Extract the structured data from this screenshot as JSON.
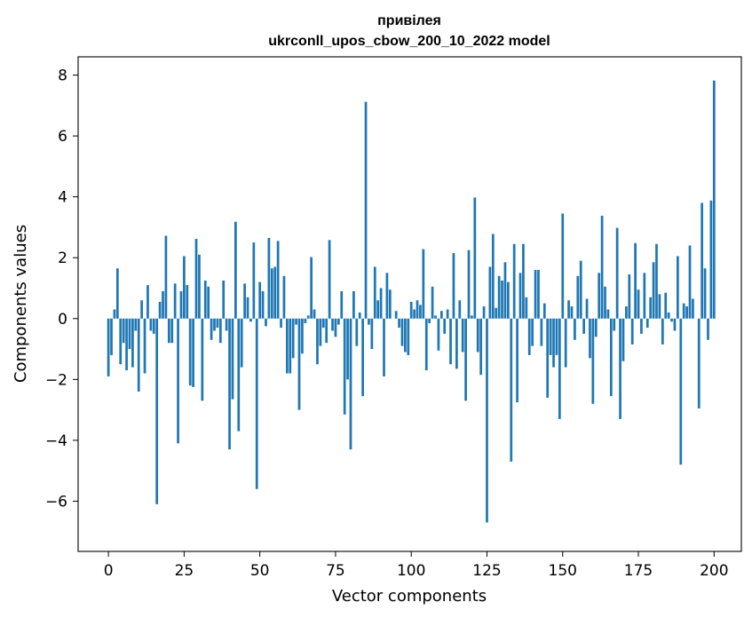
{
  "chart_data": {
    "type": "bar",
    "title": "привілея",
    "subtitle": "ukrconll_upos_cbow_200_10_2022 model",
    "xlabel": "Vector components",
    "ylabel": "Components values",
    "xlim": [
      -10,
      209
    ],
    "ylim": [
      -7.65,
      8.6
    ],
    "xticks": [
      0,
      25,
      50,
      75,
      100,
      125,
      150,
      175,
      200
    ],
    "yticks": [
      -6,
      -4,
      -2,
      0,
      2,
      4,
      6,
      8
    ],
    "ytick_labels": [
      "−6",
      "−4",
      "−2",
      "0",
      "2",
      "4",
      "6",
      "8"
    ],
    "bar_color": "#1f77b4",
    "grid": false,
    "series": [
      {
        "values": [
          -1.9,
          -1.2,
          0.3,
          1.65,
          -1.5,
          -0.8,
          -1.7,
          -1.0,
          -1.6,
          -0.4,
          -2.4,
          0.6,
          -1.8,
          1.1,
          -0.4,
          -0.5,
          -6.1,
          0.55,
          0.9,
          2.72,
          -0.8,
          -0.8,
          1.15,
          -4.1,
          0.9,
          2.05,
          1.1,
          -2.2,
          -2.25,
          2.62,
          2.1,
          -2.7,
          1.25,
          1.05,
          -0.7,
          -0.4,
          -0.3,
          -0.8,
          1.25,
          -0.4,
          -4.3,
          -2.65,
          3.18,
          -3.7,
          -1.6,
          1.15,
          0.7,
          -0.1,
          2.5,
          -5.6,
          1.2,
          0.9,
          -0.25,
          2.65,
          1.65,
          1.7,
          2.55,
          -0.3,
          1.4,
          -1.8,
          -1.8,
          -1.3,
          -0.2,
          -3.0,
          -1.15,
          -0.15,
          0.1,
          2.02,
          0.3,
          -1.5,
          -0.9,
          -0.3,
          -0.8,
          2.58,
          -0.4,
          -0.6,
          -0.2,
          0.9,
          -3.15,
          -2.0,
          -4.3,
          0.9,
          -0.9,
          0.2,
          -2.55,
          7.12,
          -0.2,
          -1.0,
          1.7,
          0.6,
          1.0,
          -1.9,
          1.5,
          0.95,
          0.0,
          0.25,
          -0.3,
          -0.9,
          -1.1,
          -1.2,
          0.55,
          0.3,
          0.6,
          0.45,
          2.28,
          -1.7,
          -0.15,
          1.05,
          0.1,
          -1.05,
          0.25,
          -0.5,
          0.3,
          -1.5,
          2.15,
          -1.65,
          0.6,
          -1.1,
          -2.7,
          2.25,
          0.1,
          3.98,
          -1.1,
          -1.85,
          0.4,
          -6.7,
          1.7,
          2.78,
          0.35,
          1.4,
          1.25,
          1.85,
          1.2,
          -4.7,
          2.45,
          -2.75,
          1.5,
          2.45,
          0.7,
          -1.2,
          -0.9,
          1.6,
          1.6,
          -0.9,
          0.5,
          -2.6,
          -1.2,
          -1.6,
          -1.2,
          -3.3,
          3.45,
          -1.6,
          0.6,
          0.4,
          -0.7,
          1.4,
          1.9,
          -0.5,
          0.65,
          -1.3,
          -2.8,
          -0.6,
          1.5,
          3.38,
          1.05,
          0.3,
          -2.55,
          -0.4,
          2.98,
          -3.3,
          -1.4,
          0.4,
          1.45,
          -0.85,
          2.48,
          0.95,
          -0.5,
          1.5,
          -0.3,
          0.7,
          1.85,
          2.45,
          0.8,
          -0.85,
          0.85,
          0.2,
          -0.1,
          -0.4,
          2.05,
          -4.8,
          0.5,
          0.4,
          2.4,
          0.65,
          0.0,
          -2.95,
          3.8,
          1.65,
          -0.7,
          3.88,
          7.82
        ]
      }
    ]
  }
}
